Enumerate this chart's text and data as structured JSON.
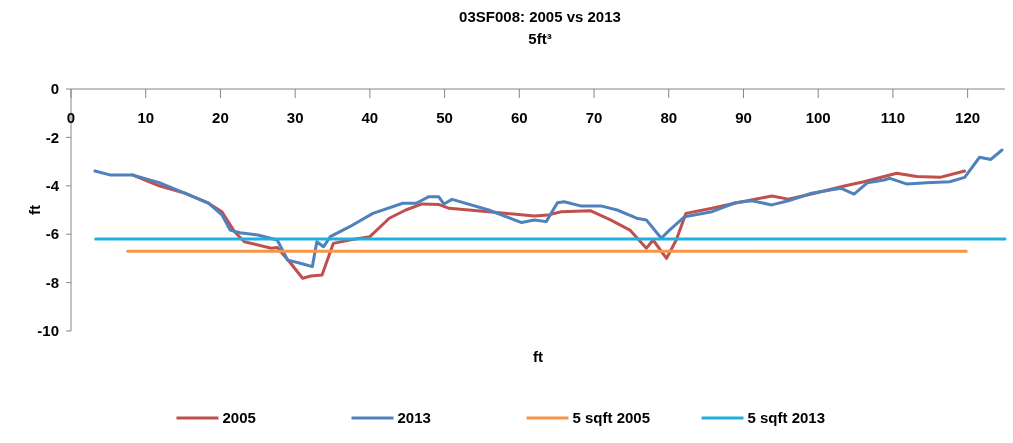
{
  "chart_data": {
    "type": "line",
    "title": "03SF008: 2005 vs 2013",
    "subtitle": "5ft³",
    "xlabel": "ft",
    "ylabel": "ft",
    "xlim": [
      0,
      125
    ],
    "xticks": [
      0,
      10,
      20,
      30,
      40,
      50,
      60,
      70,
      80,
      90,
      100,
      110,
      120
    ],
    "ylim": [
      -10,
      0
    ],
    "yticks": [
      -10,
      -8,
      -6,
      -4,
      -2,
      0
    ],
    "grid": false,
    "legend": "bottom",
    "series": [
      {
        "name": "2005",
        "color": "#c0504d",
        "x": [
          8.2,
          11.8,
          15.3,
          18.4,
          20.2,
          21.9,
          23.2,
          26.8,
          27.6,
          29.4,
          31,
          32.1,
          33.6,
          35.1,
          37.3,
          40,
          42.6,
          44.8,
          47,
          49.2,
          50.6,
          55.9,
          62,
          63.8,
          65.6,
          69.5,
          72.2,
          74.8,
          77,
          77.9,
          79.7,
          81,
          82.3,
          85.8,
          89.1,
          93.8,
          96,
          99.1,
          103.5,
          106.1,
          110.5,
          113.2,
          116.3,
          119.6
        ],
        "values": [
          -3.55,
          -4.0,
          -4.31,
          -4.72,
          -5.07,
          -5.9,
          -6.31,
          -6.58,
          -6.55,
          -7.2,
          -7.82,
          -7.73,
          -7.69,
          -6.38,
          -6.24,
          -6.1,
          -5.34,
          -5.0,
          -4.75,
          -4.77,
          -4.93,
          -5.07,
          -5.25,
          -5.21,
          -5.07,
          -5.03,
          -5.41,
          -5.83,
          -6.58,
          -6.24,
          -7.0,
          -6.24,
          -5.14,
          -4.93,
          -4.7,
          -4.42,
          -4.55,
          -4.34,
          -4.01,
          -3.83,
          -3.48,
          -3.62,
          -3.65,
          -3.39
        ]
      },
      {
        "name": "2013",
        "color": "#4f81bd",
        "x": [
          3.2,
          5.2,
          8.2,
          11.8,
          15.3,
          18.4,
          20.2,
          21.3,
          22.6,
          25,
          27.6,
          29,
          30.7,
          32.3,
          32.9,
          33.8,
          34.7,
          37.3,
          40.4,
          44.4,
          46.2,
          47.9,
          49.2,
          49.9,
          51,
          55.9,
          60.3,
          62,
          63.6,
          65.1,
          66,
          68.2,
          70.9,
          73.1,
          75.7,
          77,
          79,
          80.1,
          82.1,
          85.8,
          88.9,
          91.1,
          93.8,
          96,
          99.1,
          103,
          104.8,
          106.6,
          108.8,
          109.6,
          111.9,
          114.5,
          117.6,
          119.6,
          121.6,
          123.1,
          124.6
        ],
        "values": [
          -3.39,
          -3.55,
          -3.55,
          -3.87,
          -4.31,
          -4.72,
          -5.2,
          -5.83,
          -5.94,
          -6.03,
          -6.24,
          -7.07,
          -7.2,
          -7.34,
          -6.31,
          -6.52,
          -6.1,
          -5.69,
          -5.14,
          -4.72,
          -4.72,
          -4.45,
          -4.45,
          -4.75,
          -4.56,
          -5.0,
          -5.52,
          -5.41,
          -5.48,
          -4.7,
          -4.66,
          -4.83,
          -4.83,
          -5.0,
          -5.34,
          -5.41,
          -6.17,
          -5.83,
          -5.28,
          -5.07,
          -4.7,
          -4.62,
          -4.79,
          -4.62,
          -4.31,
          -4.1,
          -4.34,
          -3.87,
          -3.76,
          -3.69,
          -3.93,
          -3.87,
          -3.83,
          -3.65,
          -2.82,
          -2.91,
          -2.52
        ]
      },
      {
        "name": "5 sqft 2005",
        "color": "#f79646",
        "x": [
          7.6,
          119.8
        ],
        "values": [
          -6.7,
          -6.7
        ]
      },
      {
        "name": "5 sqft 2013",
        "color": "#1fb0e0",
        "x": [
          3.3,
          125
        ],
        "values": [
          -6.2,
          -6.2
        ]
      }
    ]
  }
}
